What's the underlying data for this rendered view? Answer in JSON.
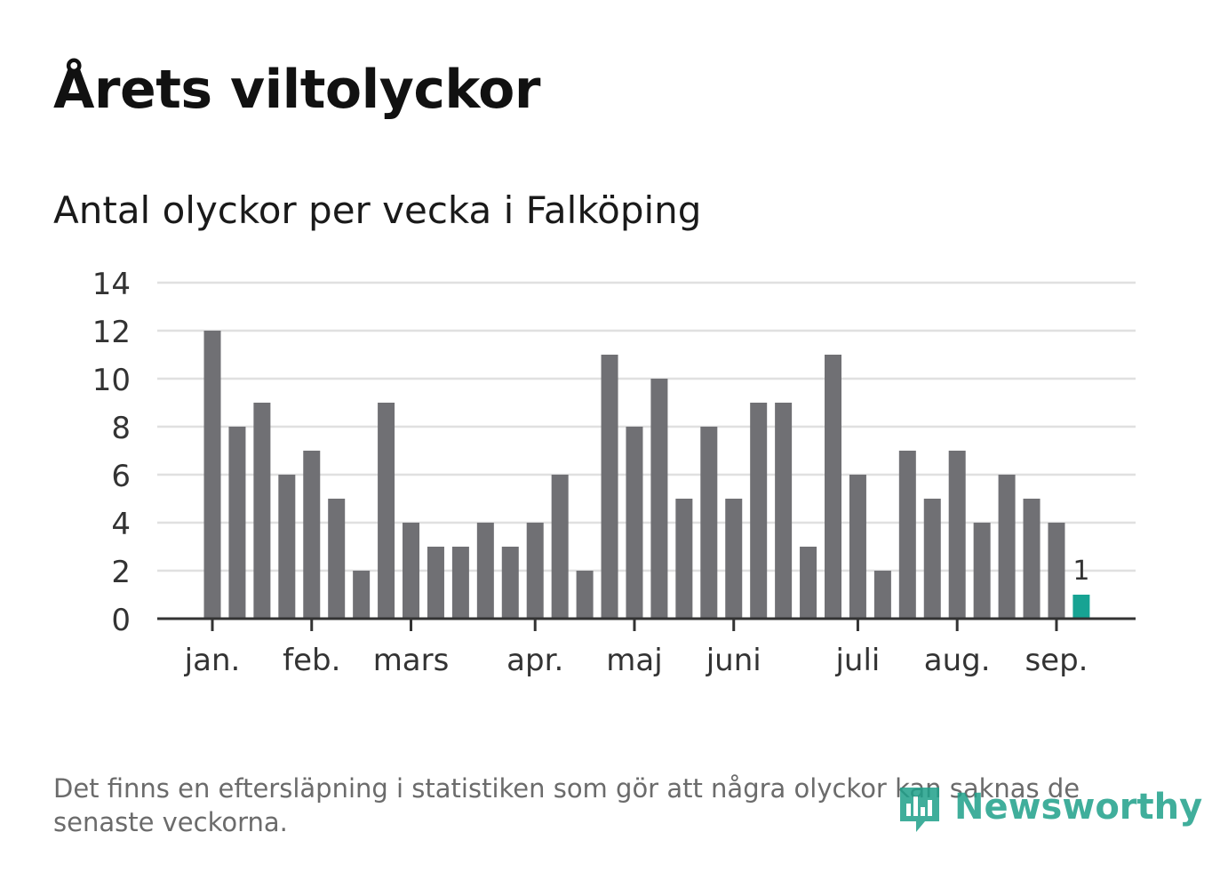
{
  "header": {
    "title": "Årets viltolyckor",
    "subtitle": "Antal olyckor per vecka i Falköping"
  },
  "footnote": "Det finns en eftersläpning i statistiken som gör att några olyckor kan saknas de senaste veckorna.",
  "logo": {
    "text": "Newsworthy"
  },
  "colors": {
    "bar": "#707074",
    "highlight": "#17a393",
    "grid": "#e0e0e0",
    "axis": "#333333"
  },
  "chart_data": {
    "type": "bar",
    "title": "Antal olyckor per vecka i Falköping",
    "xlabel": "",
    "ylabel": "",
    "ylim": [
      0,
      14
    ],
    "yticks": [
      0,
      2,
      4,
      6,
      8,
      10,
      12,
      14
    ],
    "grid": true,
    "weeks": 36,
    "values": [
      12,
      8,
      9,
      6,
      7,
      5,
      2,
      9,
      4,
      3,
      3,
      4,
      3,
      4,
      6,
      2,
      11,
      8,
      10,
      5,
      8,
      5,
      9,
      9,
      3,
      11,
      6,
      2,
      7,
      5,
      7,
      4,
      6,
      5,
      4,
      1
    ],
    "highlight_index": 35,
    "highlight_label": "1",
    "month_ticks": [
      {
        "label": "jan.",
        "week": 1
      },
      {
        "label": "feb.",
        "week": 5
      },
      {
        "label": "mars",
        "week": 9
      },
      {
        "label": "apr.",
        "week": 14
      },
      {
        "label": "maj",
        "week": 18
      },
      {
        "label": "juni",
        "week": 22
      },
      {
        "label": "juli",
        "week": 27
      },
      {
        "label": "aug.",
        "week": 31
      },
      {
        "label": "sep.",
        "week": 35
      }
    ]
  }
}
